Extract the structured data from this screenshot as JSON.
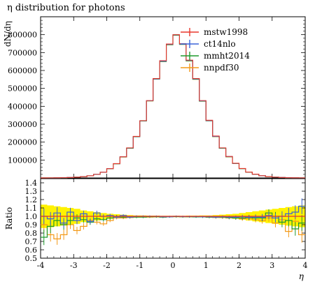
{
  "title": "η distribution for photons",
  "colors": {
    "mstw1998": "#e8372b",
    "ct14nlo": "#3a63d8",
    "mmht2014": "#1f9a2c",
    "nnpdf30": "#f39a19",
    "band": "#fff200"
  },
  "chart_data": [
    {
      "type": "line",
      "panel": "main",
      "ylabel": "dN/dη",
      "xlim": [
        -4,
        4
      ],
      "ylim": [
        0,
        900000
      ],
      "yticks": [
        100000,
        200000,
        300000,
        400000,
        500000,
        600000,
        700000,
        800000
      ],
      "ytick_labels": [
        "100000",
        "200000",
        "300000",
        "400000",
        "500000",
        "600000",
        "700000",
        "800000"
      ],
      "bin_edges": [
        -4.0,
        -3.8,
        -3.6,
        -3.4,
        -3.2,
        -3.0,
        -2.8,
        -2.6,
        -2.4,
        -2.2,
        -2.0,
        -1.8,
        -1.6,
        -1.4,
        -1.2,
        -1.0,
        -0.8,
        -0.6,
        -0.4,
        -0.2,
        0.0,
        0.2,
        0.4,
        0.6,
        0.8,
        1.0,
        1.2,
        1.4,
        1.6,
        1.8,
        2.0,
        2.2,
        2.4,
        2.6,
        2.8,
        3.0,
        3.2,
        3.4,
        3.6,
        3.8,
        4.0
      ],
      "legend_position": "top-right",
      "series": [
        {
          "name": "mstw1998",
          "values": [
            300,
            500,
            900,
            1500,
            2500,
            4200,
            7200,
            12000,
            20000,
            32000,
            52000,
            80000,
            118000,
            168000,
            232000,
            320000,
            432000,
            555000,
            655000,
            748000,
            800000,
            750000,
            658000,
            555000,
            432000,
            322000,
            234000,
            168000,
            120000,
            82000,
            53000,
            33000,
            21000,
            12500,
            7500,
            4400,
            2600,
            1500,
            900,
            500
          ]
        },
        {
          "name": "ct14nlo",
          "values": [
            310,
            490,
            920,
            1480,
            2550,
            4150,
            7300,
            12100,
            20200,
            31800,
            52500,
            79500,
            118500,
            167000,
            231000,
            319000,
            431000,
            553000,
            652000,
            746000,
            799000,
            748000,
            656000,
            553000,
            430000,
            320000,
            232000,
            167000,
            119000,
            81000,
            52500,
            32800,
            20800,
            12400,
            7450,
            4350,
            2580,
            1520,
            910,
            510
          ]
        },
        {
          "name": "mmht2014",
          "values": [
            280,
            470,
            880,
            1450,
            2450,
            4100,
            7100,
            11800,
            19800,
            31500,
            51500,
            79000,
            117000,
            166000,
            230000,
            318000,
            430000,
            552000,
            650000,
            744000,
            797000,
            746000,
            654000,
            551000,
            429000,
            319000,
            231000,
            166000,
            118000,
            80500,
            52000,
            32500,
            20500,
            12200,
            7300,
            4250,
            2450,
            1420,
            850,
            480
          ]
        },
        {
          "name": "nnpdf30",
          "values": [
            270,
            450,
            850,
            1420,
            2400,
            4050,
            7000,
            11700,
            19600,
            31200,
            51000,
            78500,
            116500,
            165500,
            229500,
            317500,
            429500,
            551500,
            649500,
            743500,
            796500,
            745500,
            653500,
            550500,
            428500,
            318500,
            230500,
            165500,
            117500,
            80000,
            51500,
            32200,
            20200,
            12000,
            7200,
            4200,
            2400,
            1400,
            820,
            460
          ]
        }
      ]
    },
    {
      "type": "line",
      "panel": "ratio",
      "ylabel": "Ratio",
      "xlabel": "η",
      "xlim": [
        -4,
        4
      ],
      "ylim": [
        0.5,
        1.45
      ],
      "yticks": [
        0.5,
        0.6,
        0.7,
        0.8,
        0.9,
        1.0,
        1.1,
        1.2,
        1.3,
        1.4
      ],
      "ytick_labels": [
        "0.5",
        "0.6",
        "0.7",
        "0.8",
        "0.9",
        "1.0",
        "1.1",
        "1.2",
        "1.3",
        "1.4"
      ],
      "xticks": [
        -4,
        -3,
        -2,
        -1,
        0,
        1,
        2,
        3,
        4
      ],
      "xtick_labels": [
        "-4",
        "-3",
        "-2",
        "-1",
        "0",
        "1",
        "2",
        "3",
        "4"
      ],
      "band": {
        "upper": [
          1.14,
          1.13,
          1.12,
          1.11,
          1.1,
          1.09,
          1.07,
          1.06,
          1.05,
          1.04,
          1.03,
          1.025,
          1.02,
          1.015,
          1.01,
          1.01,
          1.008,
          1.008,
          1.006,
          1.006,
          1.006,
          1.006,
          1.008,
          1.008,
          1.01,
          1.01,
          1.015,
          1.02,
          1.025,
          1.03,
          1.04,
          1.05,
          1.06,
          1.07,
          1.08,
          1.09,
          1.1,
          1.11,
          1.12,
          1.13
        ],
        "lower": [
          0.86,
          0.87,
          0.88,
          0.89,
          0.9,
          0.91,
          0.93,
          0.94,
          0.95,
          0.96,
          0.97,
          0.975,
          0.98,
          0.985,
          0.99,
          0.99,
          0.992,
          0.992,
          0.994,
          0.994,
          0.994,
          0.994,
          0.992,
          0.992,
          0.99,
          0.99,
          0.985,
          0.98,
          0.975,
          0.97,
          0.96,
          0.95,
          0.94,
          0.93,
          0.92,
          0.91,
          0.9,
          0.89,
          0.88,
          0.87
        ]
      },
      "series": [
        {
          "name": "mstw1998",
          "values": [
            1,
            1,
            1,
            1,
            1,
            1,
            1,
            1,
            1,
            1,
            1,
            1,
            1,
            1,
            1,
            1,
            1,
            1,
            1,
            1,
            1,
            1,
            1,
            1,
            1,
            1,
            1,
            1,
            1,
            1,
            1,
            1,
            1,
            1,
            1,
            1,
            1,
            1,
            1,
            1
          ]
        },
        {
          "name": "ct14nlo",
          "values": [
            1.0,
            0.97,
            1.04,
            0.92,
            1.05,
            0.95,
            1.03,
            0.94,
            1.04,
            1.0,
            1.01,
            0.99,
            1.01,
            0.99,
            1.0,
            1.0,
            1.0,
            1.0,
            0.995,
            0.995,
            1.0,
            0.997,
            0.997,
            0.997,
            0.995,
            0.995,
            0.99,
            0.995,
            0.99,
            0.99,
            0.995,
            0.99,
            0.99,
            0.99,
            1.01,
            0.98,
            1.0,
            1.03,
            1.05,
            1.12
          ]
        },
        {
          "name": "mmht2014",
          "values": [
            0.75,
            0.88,
            0.95,
            0.9,
            0.95,
            0.98,
            0.96,
            0.93,
            0.97,
            0.96,
            0.98,
            1.0,
            0.99,
            0.99,
            0.99,
            0.99,
            0.995,
            0.995,
            0.99,
            0.995,
            0.996,
            0.995,
            0.995,
            0.993,
            0.993,
            0.99,
            0.99,
            0.99,
            0.985,
            0.98,
            0.98,
            0.985,
            0.98,
            0.98,
            1.04,
            1.0,
            0.93,
            0.95,
            0.85,
            0.92
          ]
        },
        {
          "name": "nnpdf30",
          "values": [
            0.9,
            0.78,
            0.73,
            0.78,
            0.9,
            0.83,
            0.88,
            0.95,
            0.93,
            0.91,
            0.95,
            0.98,
            0.98,
            0.985,
            0.99,
            0.99,
            0.99,
            0.993,
            0.99,
            0.995,
            0.996,
            0.994,
            0.994,
            0.992,
            0.992,
            0.988,
            0.985,
            0.985,
            0.98,
            0.98,
            0.97,
            0.975,
            0.96,
            0.95,
            0.98,
            0.92,
            0.96,
            0.82,
            0.94,
            0.78
          ]
        }
      ]
    }
  ]
}
